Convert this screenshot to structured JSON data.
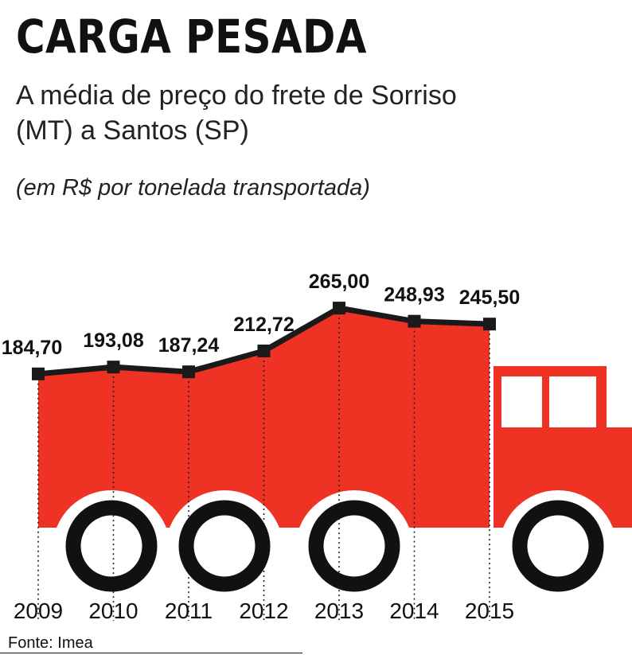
{
  "title": "CARGA PESADA",
  "subtitle": "A média de preço do frete de Sorriso (MT) a Santos (SP)",
  "unit_note": "(em R$ por tonelada transportada)",
  "source": "Fonte: Imea",
  "colors": {
    "truck": "#ee3224",
    "line": "#1a1a1a",
    "wheel": "#111111",
    "window": "#ffffff"
  },
  "chart_data": {
    "type": "area",
    "title": "CARGA PESADA",
    "subtitle": "A média de preço do frete de Sorriso (MT) a Santos (SP)",
    "ylabel": "(em R$ por tonelada transportada)",
    "xlabel": "",
    "x": [
      "2009",
      "2010",
      "2011",
      "2012",
      "2013",
      "2014",
      "2015"
    ],
    "values": [
      184.7,
      193.08,
      187.24,
      212.72,
      265.0,
      248.93,
      245.5
    ],
    "value_labels": [
      "184,70",
      "193,08",
      "187,24",
      "212,72",
      "265,00",
      "248,93",
      "245,50"
    ],
    "grid": false,
    "legend": "none"
  }
}
